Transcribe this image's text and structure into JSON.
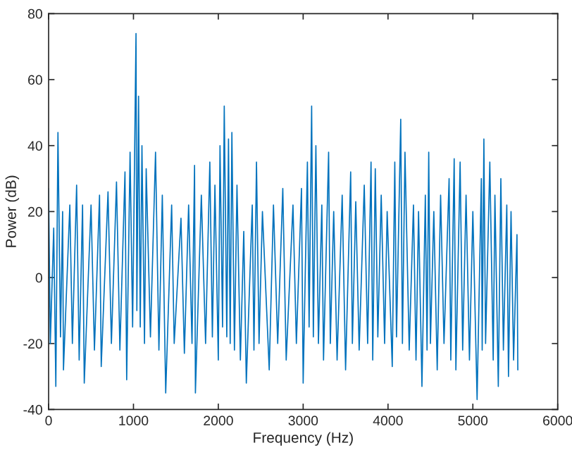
{
  "chart_data": {
    "type": "line",
    "xlabel": "Frequency (Hz)",
    "ylabel": "Power (dB)",
    "x": [
      0,
      20,
      60,
      85,
      110,
      140,
      165,
      175,
      250,
      280,
      330,
      360,
      400,
      420,
      500,
      540,
      600,
      620,
      700,
      740,
      800,
      840,
      900,
      920,
      960,
      990,
      1030,
      1040,
      1060,
      1080,
      1100,
      1130,
      1150,
      1200,
      1260,
      1300,
      1340,
      1380,
      1450,
      1480,
      1560,
      1600,
      1650,
      1690,
      1720,
      1730,
      1800,
      1850,
      1900,
      1930,
      1960,
      2000,
      2020,
      2050,
      2070,
      2100,
      2120,
      2140,
      2160,
      2190,
      2220,
      2260,
      2300,
      2330,
      2400,
      2420,
      2450,
      2480,
      2520,
      2600,
      2650,
      2700,
      2760,
      2800,
      2880,
      2920,
      2980,
      3000,
      3050,
      3070,
      3100,
      3120,
      3150,
      3180,
      3220,
      3240,
      3300,
      3320,
      3360,
      3400,
      3460,
      3500,
      3560,
      3580,
      3620,
      3660,
      3720,
      3760,
      3800,
      3820,
      3850,
      3880,
      3920,
      3960,
      3990,
      4050,
      4080,
      4100,
      4150,
      4170,
      4200,
      4250,
      4300,
      4330,
      4360,
      4400,
      4440,
      4460,
      4480,
      4500,
      4540,
      4580,
      4620,
      4660,
      4720,
      4740,
      4780,
      4800,
      4850,
      4880,
      4920,
      4960,
      5000,
      5050,
      5100,
      5110,
      5130,
      5150,
      5200,
      5240,
      5260,
      5300,
      5330,
      5360,
      5400,
      5420,
      5450,
      5480,
      5520,
      5530
    ],
    "series": [
      {
        "color": "#0072bd",
        "values": [
          27,
          -20,
          15,
          -33,
          44,
          -18,
          20,
          -28,
          22,
          -20,
          28,
          -25,
          22,
          -32,
          22,
          -22,
          25,
          -27,
          26,
          -20,
          29,
          -22,
          32,
          -31,
          38,
          -15,
          74,
          -10,
          55,
          -15,
          40,
          -20,
          33,
          -18,
          38,
          -22,
          25,
          -35,
          22,
          -20,
          18,
          -23,
          22,
          -20,
          34,
          -35,
          25,
          -20,
          35,
          -18,
          28,
          -25,
          40,
          -15,
          52,
          -18,
          42,
          -20,
          44,
          -22,
          28,
          -25,
          14,
          -32,
          22,
          -22,
          35,
          -20,
          20,
          -28,
          22,
          -20,
          27,
          -25,
          22,
          -20,
          27,
          -32,
          35,
          -15,
          52,
          -18,
          40,
          -20,
          22,
          -25,
          38,
          -20,
          20,
          -25,
          25,
          -28,
          32,
          -20,
          23,
          -22,
          28,
          -20,
          35,
          -25,
          33,
          -18,
          25,
          -20,
          20,
          -27,
          35,
          -18,
          48,
          -20,
          38,
          -22,
          22,
          -25,
          20,
          -33,
          25,
          -22,
          38,
          -20,
          20,
          -28,
          25,
          -20,
          30,
          -25,
          36,
          -28,
          35,
          -22,
          25,
          -25,
          20,
          -37,
          30,
          -22,
          42,
          -20,
          35,
          -25,
          25,
          -33,
          30,
          -22,
          22,
          -30,
          20,
          -25,
          13,
          -28
        ]
      }
    ],
    "xlim": [
      0,
      6000
    ],
    "xticks": [
      0,
      1000,
      2000,
      3000,
      4000,
      5000,
      6000
    ],
    "ylim": [
      -40,
      80
    ],
    "yticks": [
      -40,
      -20,
      0,
      20,
      40,
      60,
      80
    ],
    "grid": false,
    "legend": false,
    "marker": "none",
    "line_style": "solid"
  }
}
